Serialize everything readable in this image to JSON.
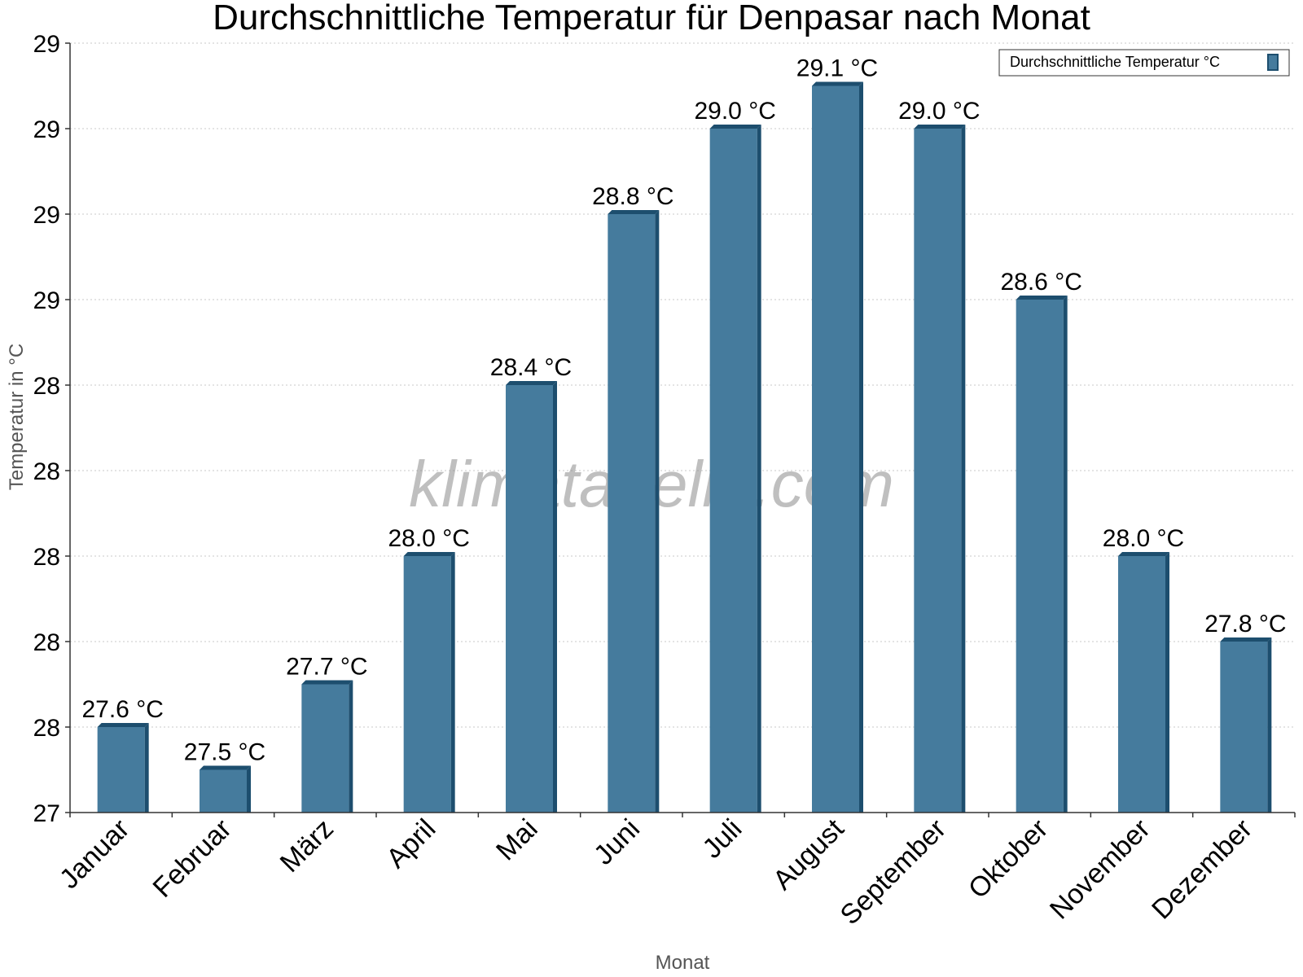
{
  "chart_data": {
    "type": "bar",
    "title": "Durchschnittliche Temperatur für Denpasar nach Monat",
    "xlabel": "Monat",
    "ylabel": "Temperatur in °C",
    "categories": [
      "Januar",
      "Februar",
      "März",
      "April",
      "Mai",
      "Juni",
      "Juli",
      "August",
      "September",
      "Oktober",
      "November",
      "Dezember"
    ],
    "series": [
      {
        "name": "Durchschnittliche Temperatur °C",
        "values": [
          27.6,
          27.5,
          27.7,
          28.0,
          28.4,
          28.8,
          29.0,
          29.1,
          29.0,
          28.6,
          28.0,
          27.8
        ],
        "labels": [
          "27.6 °C",
          "27.5 °C",
          "27.7 °C",
          "28.0 °C",
          "28.4 °C",
          "28.8 °C",
          "29.0 °C",
          "29.1 °C",
          "29.0 °C",
          "28.6 °C",
          "28.0 °C",
          "27.8 °C"
        ],
        "color": "#457b9d",
        "edge_color": "#1d4e6e"
      }
    ],
    "ylim": [
      27.4,
      29.2
    ],
    "yticks": [
      27.4,
      27.6,
      27.8,
      28.0,
      28.2,
      28.4,
      28.6,
      28.8,
      29.0,
      29.2
    ],
    "ytick_labels": [
      "27",
      "28",
      "28",
      "28",
      "28",
      "28",
      "29",
      "29",
      "29",
      "29"
    ],
    "grid": true,
    "legend_position": "top-right",
    "watermark": "klimatabelle.com"
  }
}
